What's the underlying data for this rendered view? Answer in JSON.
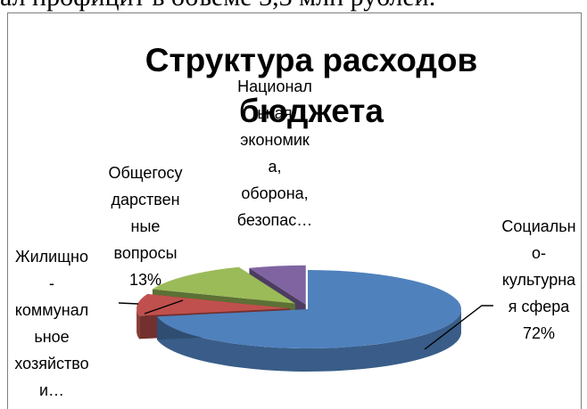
{
  "top_text": "ал профицит в объеме 3,3 млн рублей.",
  "chart_data": {
    "type": "pie",
    "title_lines": [
      "Структура расходов",
      "бюджета"
    ],
    "series": [
      {
        "values": [
          72,
          9,
          13,
          6
        ],
        "colors": [
          "#4f81bd",
          "#c0504d",
          "#9bbb59",
          "#8064a2"
        ]
      }
    ],
    "labels": [
      {
        "lines": [
          "Социальн",
          "о-",
          "культурна",
          "я сфера",
          "72%"
        ]
      },
      {
        "lines": [
          "Жилищно",
          "-",
          "коммунал",
          "ьное",
          "хозяйство",
          "и…"
        ]
      },
      {
        "lines": [
          "Общегосу",
          "дарствен",
          "ные",
          "вопросы",
          "13%"
        ]
      },
      {
        "lines": [
          "Национал",
          "ьная",
          "экономик",
          "а,",
          "оборона,",
          "безопас…"
        ]
      }
    ],
    "legend": "none"
  }
}
